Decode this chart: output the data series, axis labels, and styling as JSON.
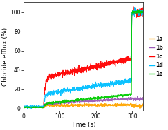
{
  "title": "",
  "xlabel": "Time (s)",
  "ylabel": "Chloride efflux (%)",
  "xlim": [
    0,
    330
  ],
  "ylim": [
    -2,
    110
  ],
  "xticks": [
    0,
    100,
    200,
    300
  ],
  "yticks": [
    0,
    20,
    40,
    60,
    80,
    100
  ],
  "background_color": "#ffffff",
  "compound_add_time": 55,
  "detergent_time": 298,
  "dt": 0.3,
  "series": {
    "1a": {
      "color": "#FFA500",
      "baseline_mean": 1.5,
      "baseline_noise": 0.6,
      "jump_height": 2.0,
      "post_jump_noise": 1.2,
      "slow_slope": 0.001,
      "detergent_level": 3.0,
      "linewidth": 0.7
    },
    "1b": {
      "color": "#9B59B6",
      "baseline_mean": 1.5,
      "baseline_noise": 0.6,
      "jump_height": 3.5,
      "post_jump_noise": 1.0,
      "slow_slope": 0.022,
      "detergent_level": 10.0,
      "linewidth": 0.7
    },
    "1c": {
      "color": "#FF0000",
      "baseline_mean": 1.5,
      "baseline_noise": 0.7,
      "jump_height": 30.0,
      "post_jump_noise": 2.5,
      "slow_slope": 0.085,
      "detergent_level": 100.0,
      "linewidth": 0.7
    },
    "1d": {
      "color": "#00BFFF",
      "baseline_mean": 2.0,
      "baseline_noise": 1.5,
      "jump_height": 13.0,
      "post_jump_noise": 2.0,
      "slow_slope": 0.058,
      "detergent_level": 100.0,
      "linewidth": 0.7
    },
    "1e": {
      "color": "#00CC00",
      "baseline_mean": 1.5,
      "baseline_noise": 0.8,
      "jump_height": 3.5,
      "post_jump_noise": 1.0,
      "slow_slope": 0.04,
      "detergent_level": 100.0,
      "linewidth": 0.7
    }
  },
  "legend_order": [
    "1a",
    "1b",
    "1c",
    "1d",
    "1e"
  ],
  "legend_colors": {
    "1a": "#FFA500",
    "1b": "#9B59B6",
    "1c": "#FF0000",
    "1d": "#00BFFF",
    "1e": "#00CC00"
  }
}
